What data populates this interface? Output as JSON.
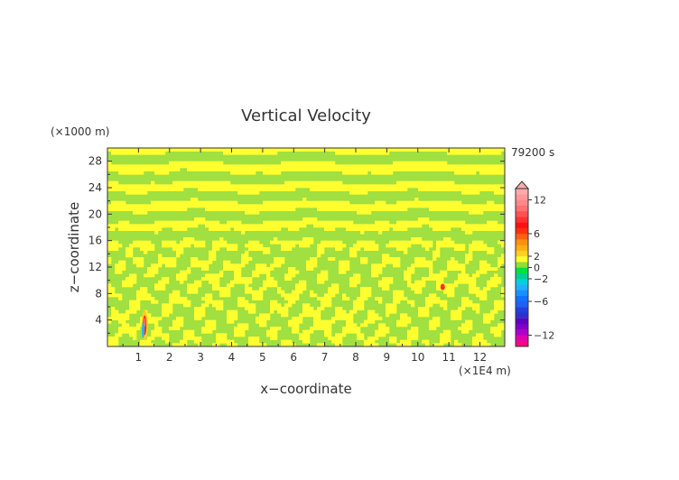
{
  "chart_data": {
    "type": "heatmap",
    "title": "Vertical Velocity",
    "xlabel": "x−coordinate",
    "ylabel": "z−coordinate",
    "x_unit": "(×1E4 m)",
    "y_unit": "(×1000 m)",
    "time_label": "79200 s",
    "xlim": [
      0,
      12.8
    ],
    "ylim": [
      0,
      30
    ],
    "x_ticks": [
      "1",
      "2",
      "3",
      "4",
      "5",
      "6",
      "7",
      "8",
      "9",
      "10",
      "11",
      "12"
    ],
    "y_ticks": [
      "4",
      "8",
      "12",
      "16",
      "20",
      "24",
      "28"
    ],
    "colorbar": {
      "levels": [
        -14,
        -13,
        -12,
        -11,
        -10,
        -9,
        -8,
        -7,
        -6,
        -5,
        -4,
        -3,
        -2,
        -1,
        0,
        1,
        2,
        3,
        4,
        5,
        6,
        7,
        8,
        9,
        10,
        11,
        12,
        13,
        14
      ],
      "colors": [
        "#ff0080",
        "#e000b0",
        "#b000c8",
        "#8000c8",
        "#6000c0",
        "#3030c8",
        "#2040e0",
        "#2060f0",
        "#1070ff",
        "#1890ff",
        "#20b0ff",
        "#00d0e0",
        "#00d090",
        "#00e040",
        "#90e030",
        "#ffff30",
        "#ffd020",
        "#ffb010",
        "#ff9010",
        "#ff6010",
        "#ff3010",
        "#ff1010",
        "#ff3030",
        "#ff5050",
        "#ff7070",
        "#ff8888",
        "#ff9898",
        "#ffaaaa"
      ],
      "tick_labels": [
        "12",
        "6",
        "2",
        "0",
        "−2",
        "−6",
        "−12"
      ],
      "tick_values": [
        12,
        6,
        2,
        0,
        -2,
        -6,
        -12
      ]
    },
    "field_colors": {
      "weak_positive": "#ffff30",
      "near_zero": "#a0e040"
    },
    "features": [
      {
        "type": "updraft",
        "x": 1.2,
        "z": 3.2,
        "peak": 10
      },
      {
        "type": "downdraft",
        "x": 1.15,
        "z": 2.5,
        "peak": -4
      },
      {
        "type": "updraft",
        "x": 10.8,
        "z": 9,
        "peak": 6
      }
    ]
  }
}
